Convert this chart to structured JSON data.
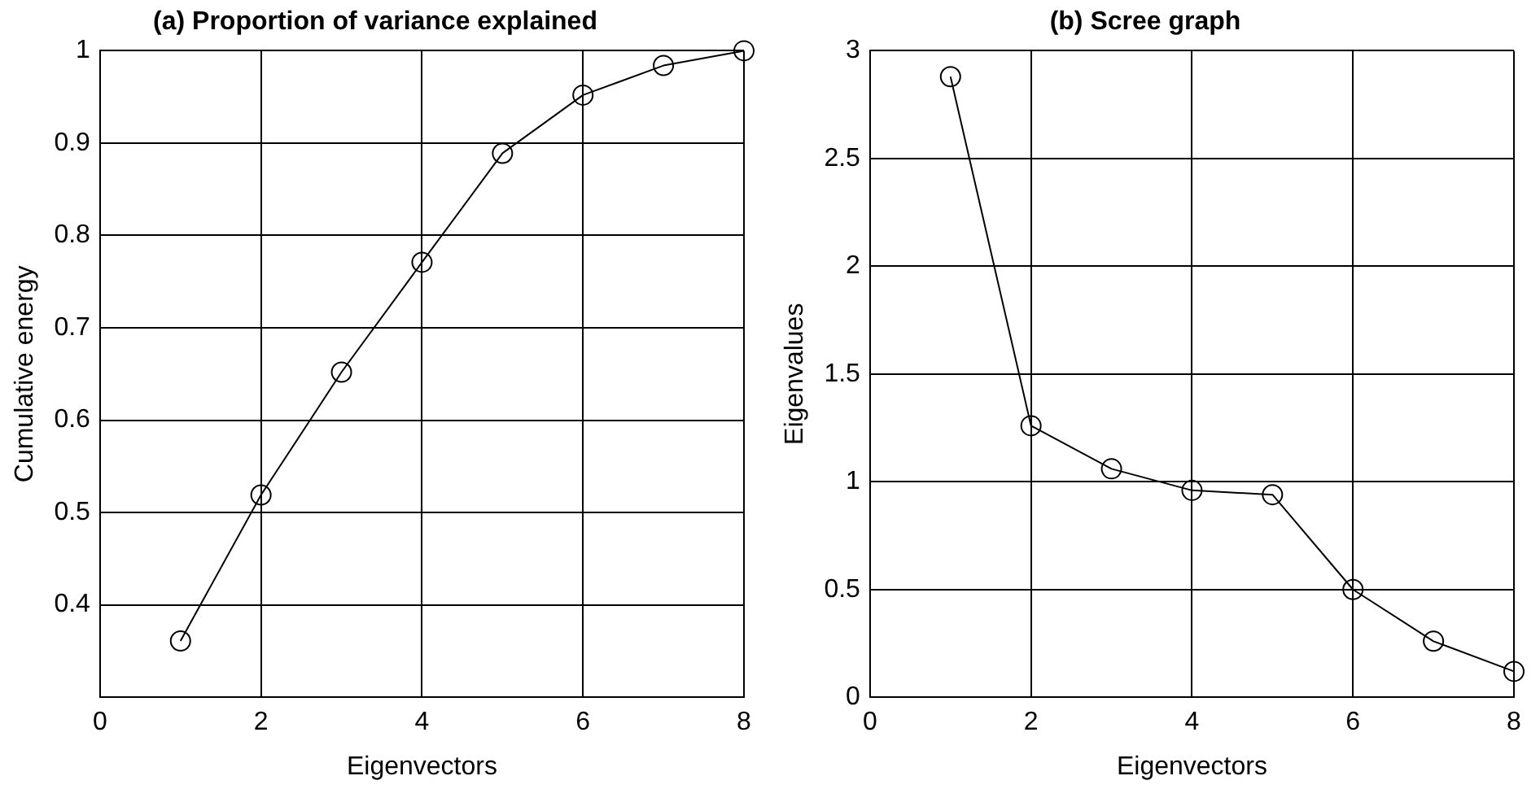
{
  "chart_data": [
    {
      "type": "line",
      "title": "(a) Proportion of variance explained",
      "xlabel": "Eigenvectors",
      "ylabel": "Cumulative energy",
      "x": [
        1,
        2,
        3,
        4,
        5,
        6,
        7,
        8
      ],
      "values": [
        0.361,
        0.519,
        0.652,
        0.771,
        0.889,
        0.952,
        0.984,
        1.0
      ],
      "color": "#000000",
      "xlim": [
        0,
        8
      ],
      "ylim": [
        0.3,
        1
      ],
      "xticks": [
        0,
        2,
        4,
        6,
        8
      ],
      "yticks": [
        0.4,
        0.5,
        0.6,
        0.7,
        0.8,
        0.9,
        1
      ],
      "grid": true,
      "marker": "circle",
      "line_style": "solid"
    },
    {
      "type": "line",
      "title": "(b) Scree graph",
      "xlabel": "Eigenvectors",
      "ylabel": "Eigenvalues",
      "x": [
        1,
        2,
        3,
        4,
        5,
        6,
        7,
        8
      ],
      "values": [
        2.88,
        1.26,
        1.06,
        0.96,
        0.94,
        0.5,
        0.26,
        0.12
      ],
      "color": "#000000",
      "xlim": [
        0,
        8
      ],
      "ylim": [
        0,
        3
      ],
      "xticks": [
        0,
        2,
        4,
        6,
        8
      ],
      "yticks": [
        0,
        0.5,
        1,
        1.5,
        2,
        2.5,
        3
      ],
      "grid": true,
      "marker": "circle",
      "line_style": "solid"
    }
  ]
}
